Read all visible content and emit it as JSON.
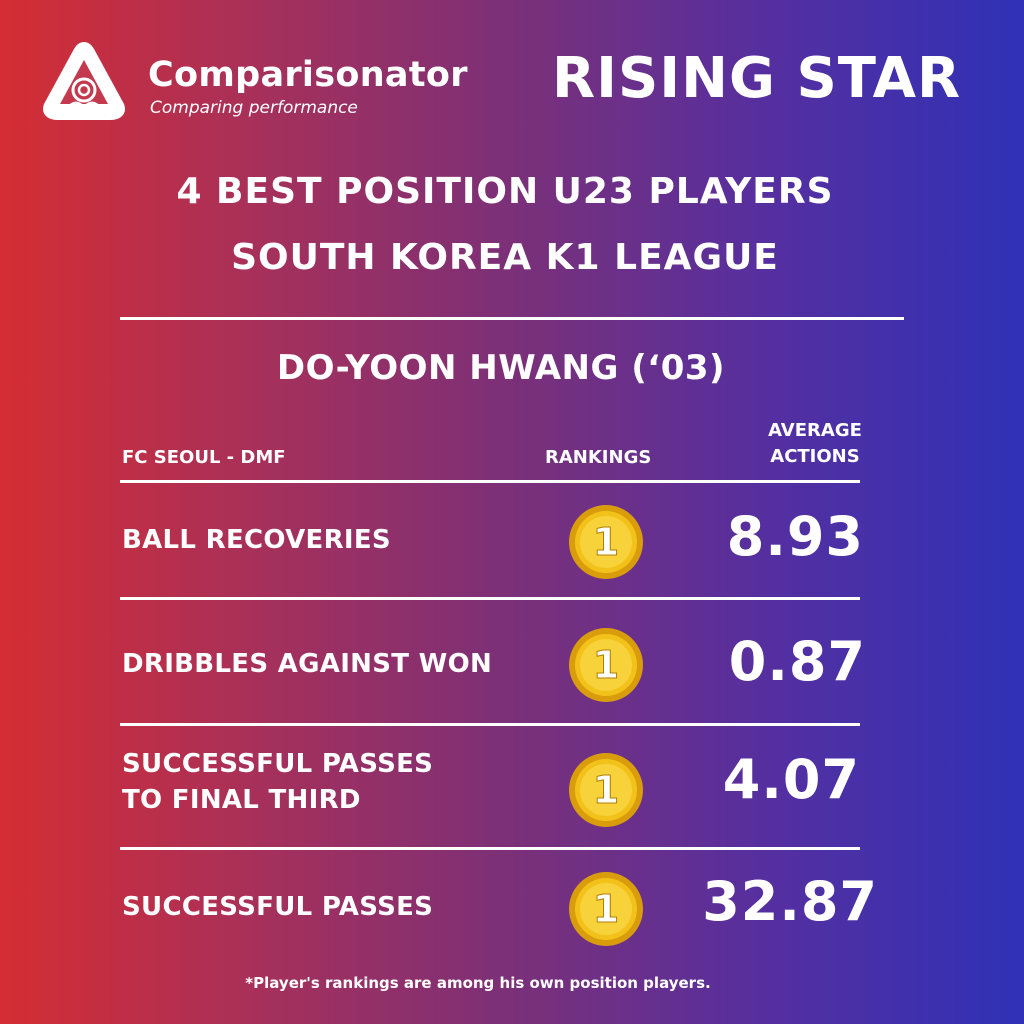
{
  "brand": {
    "name": "Comparisonator",
    "tagline": "Comparing performance",
    "logo_icon": "triangle-swirl-logo-icon"
  },
  "badge_title": "RISING STAR",
  "headline": {
    "line1": "4 BEST POSITION U23 PLAYERS",
    "line2": "SOUTH KOREA K1 LEAGUE"
  },
  "player": {
    "name": "DO-YOON HWANG (‘03)",
    "team_position": "FC SEOUL - DMF"
  },
  "columns": {
    "rankings": "RANKINGS",
    "average_actions_line1": "AVERAGE",
    "average_actions_line2": "ACTIONS"
  },
  "stats": [
    {
      "label_line1": "BALL RECOVERIES",
      "label_line2": "",
      "rank": "1",
      "value": "8.93"
    },
    {
      "label_line1": "DRIBBLES AGAINST WON",
      "label_line2": "",
      "rank": "1",
      "value": "0.87"
    },
    {
      "label_line1": "SUCCESSFUL PASSES",
      "label_line2": "TO FINAL THIRD",
      "rank": "1",
      "value": "4.07"
    },
    {
      "label_line1": "SUCCESSFUL PASSES",
      "label_line2": "",
      "rank": "1",
      "value": "32.87"
    }
  ],
  "footnote": "*Player's rankings are among his own position players.",
  "colors": {
    "gradient_left": "#d52d33",
    "gradient_right": "#2f31b6",
    "medal_gold": "#f2c21b",
    "medal_text": "#ffffff"
  }
}
